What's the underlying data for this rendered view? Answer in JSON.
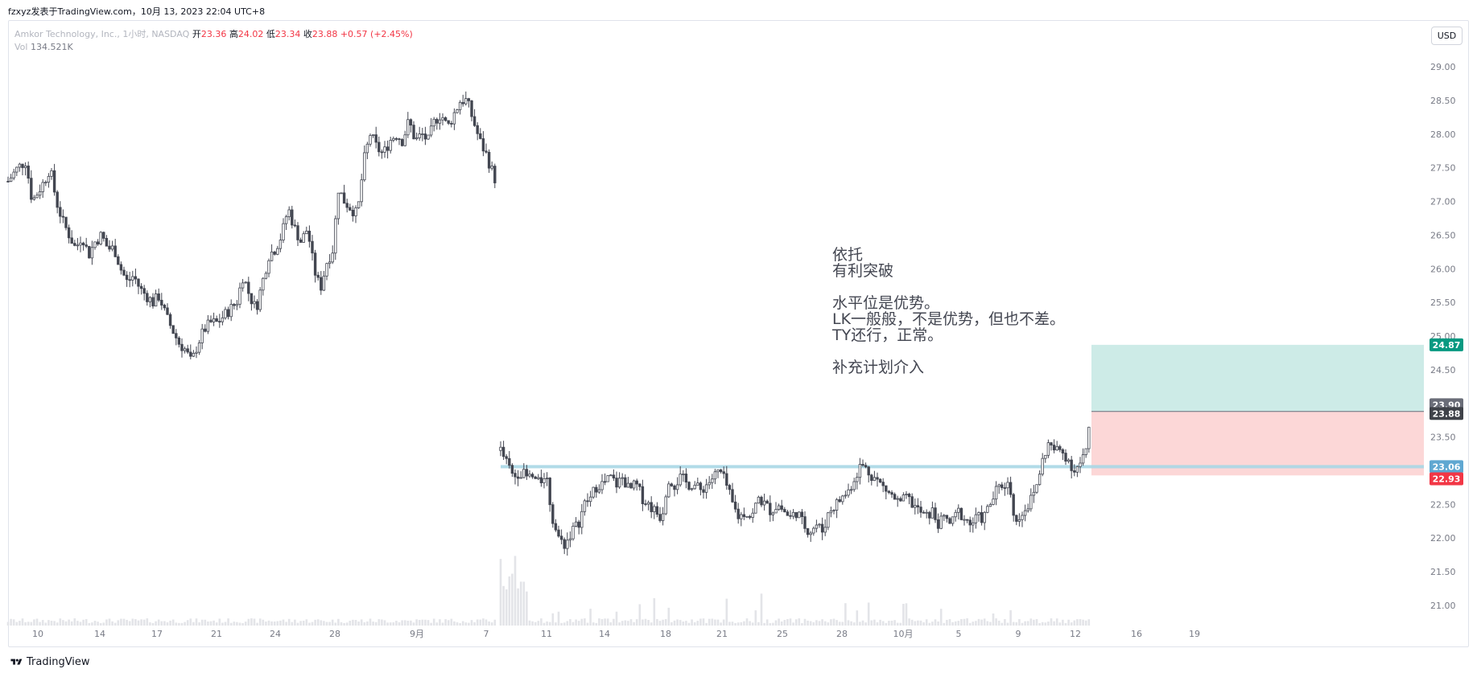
{
  "header": {
    "attribution": "fzxyz发表于TradingView.com，10月 13, 2023 22:04 UTC+8"
  },
  "legend": {
    "symbol": "Amkor Technology, Inc., 1小时, NASDAQ",
    "open_label": "开",
    "open": "23.36",
    "high_label": "高",
    "high": "24.02",
    "low_label": "低",
    "low": "23.34",
    "close_label": "收",
    "close": "23.88",
    "change": "+0.57 (+2.45%)",
    "vol_label": "Vol",
    "vol": "134.521K"
  },
  "currency_button": "USD",
  "note": "依托\n有利突破\n\n水平位是优势。\nLK一般般，不是优势，但也不差。\nTY还行，正常。\n\n补充计划介入",
  "footer": {
    "brand": "TradingView",
    "icon": "tradingview-logo-icon"
  },
  "colors": {
    "candle_up": "#ffffff",
    "candle_down": "#434651",
    "candle_outline": "#434651",
    "volume": "#e3e4e8",
    "horizontal_line": "#a8d7e6",
    "target_zone": "#cdebe7",
    "stop_zone": "#fcd7d7",
    "target_label": "#089981",
    "stop_label": "#f23645",
    "level_label": "#5fa7d1",
    "price_label": "#6a6d78",
    "current_label": "#3f4249"
  },
  "chart_data": {
    "type": "candlestick",
    "interval": "1小时",
    "y_range": [
      20.7,
      29.3
    ],
    "x_range": [
      0,
      1759
    ],
    "y_ticks": [
      "29.00",
      "28.50",
      "28.00",
      "27.50",
      "27.00",
      "26.50",
      "26.00",
      "25.50",
      "25.00",
      "24.50",
      "23.50",
      "23.00",
      "22.50",
      "22.00",
      "21.50",
      "21.00"
    ],
    "y_tick_values": [
      29.0,
      28.5,
      28.0,
      27.5,
      27.0,
      26.5,
      26.0,
      25.5,
      25.0,
      24.5,
      23.5,
      23.0,
      22.5,
      22.0,
      21.5,
      21.0
    ],
    "x_ticks": [
      {
        "x": 37,
        "label": "10"
      },
      {
        "x": 114,
        "label": "14"
      },
      {
        "x": 185,
        "label": "17"
      },
      {
        "x": 259,
        "label": "21"
      },
      {
        "x": 332,
        "label": "24"
      },
      {
        "x": 406,
        "label": "28"
      },
      {
        "x": 508,
        "label": "9月"
      },
      {
        "x": 594,
        "label": "7"
      },
      {
        "x": 669,
        "label": "11"
      },
      {
        "x": 741,
        "label": "14"
      },
      {
        "x": 817,
        "label": "18"
      },
      {
        "x": 887,
        "label": "21"
      },
      {
        "x": 962,
        "label": "25"
      },
      {
        "x": 1036,
        "label": "28"
      },
      {
        "x": 1112,
        "label": "10月"
      },
      {
        "x": 1181,
        "label": "5"
      },
      {
        "x": 1255,
        "label": "9"
      },
      {
        "x": 1326,
        "label": "12"
      },
      {
        "x": 1402,
        "label": "16"
      },
      {
        "x": 1474,
        "label": "19"
      }
    ],
    "price_path_segment_1": [
      [
        0,
        27.3
      ],
      [
        12,
        27.5
      ],
      [
        22,
        27.6
      ],
      [
        30,
        27.0
      ],
      [
        45,
        27.3
      ],
      [
        52,
        27.5
      ],
      [
        60,
        27.0
      ],
      [
        68,
        26.7
      ],
      [
        76,
        26.5
      ],
      [
        84,
        26.3
      ],
      [
        92,
        26.5
      ],
      [
        100,
        26.2
      ],
      [
        108,
        26.4
      ],
      [
        116,
        26.5
      ],
      [
        124,
        26.3
      ],
      [
        132,
        26.3
      ],
      [
        140,
        26.0
      ],
      [
        148,
        25.8
      ],
      [
        156,
        25.9
      ],
      [
        164,
        25.7
      ],
      [
        172,
        25.6
      ],
      [
        180,
        25.5
      ],
      [
        188,
        25.6
      ],
      [
        196,
        25.3
      ],
      [
        204,
        25.1
      ],
      [
        212,
        24.9
      ],
      [
        220,
        24.8
      ],
      [
        228,
        24.6
      ],
      [
        236,
        24.9
      ],
      [
        244,
        25.1
      ],
      [
        252,
        25.2
      ],
      [
        260,
        25.2
      ],
      [
        268,
        25.3
      ],
      [
        276,
        25.4
      ],
      [
        284,
        25.5
      ],
      [
        292,
        25.9
      ],
      [
        300,
        25.6
      ],
      [
        308,
        25.4
      ],
      [
        316,
        25.8
      ],
      [
        324,
        26.2
      ],
      [
        332,
        26.3
      ],
      [
        340,
        26.5
      ],
      [
        348,
        26.9
      ],
      [
        356,
        26.6
      ],
      [
        364,
        26.4
      ],
      [
        372,
        26.6
      ],
      [
        380,
        26.0
      ],
      [
        388,
        25.7
      ],
      [
        396,
        26.1
      ],
      [
        404,
        26.3
      ],
      [
        410,
        27.2
      ],
      [
        418,
        27.0
      ],
      [
        426,
        26.9
      ],
      [
        434,
        26.8
      ],
      [
        442,
        27.6
      ],
      [
        450,
        28.0
      ],
      [
        458,
        27.8
      ],
      [
        466,
        27.7
      ],
      [
        474,
        27.9
      ],
      [
        482,
        28.0
      ],
      [
        490,
        27.9
      ],
      [
        498,
        28.2
      ],
      [
        506,
        27.9
      ],
      [
        514,
        28.0
      ],
      [
        522,
        27.9
      ],
      [
        530,
        28.2
      ],
      [
        538,
        28.3
      ],
      [
        546,
        28.1
      ],
      [
        554,
        28.3
      ],
      [
        562,
        28.5
      ],
      [
        570,
        28.5
      ],
      [
        578,
        28.2
      ],
      [
        586,
        27.9
      ],
      [
        594,
        27.7
      ],
      [
        600,
        27.5
      ],
      [
        606,
        27.3
      ]
    ],
    "price_path_segment_2": [
      [
        612,
        23.3
      ],
      [
        620,
        23.1
      ],
      [
        628,
        22.9
      ],
      [
        636,
        23.0
      ],
      [
        644,
        22.9
      ],
      [
        652,
        22.9
      ],
      [
        660,
        22.8
      ],
      [
        668,
        23.0
      ],
      [
        676,
        22.3
      ],
      [
        684,
        22.0
      ],
      [
        692,
        21.9
      ],
      [
        700,
        22.1
      ],
      [
        708,
        22.2
      ],
      [
        716,
        22.5
      ],
      [
        724,
        22.6
      ],
      [
        732,
        22.8
      ],
      [
        740,
        22.8
      ],
      [
        748,
        22.9
      ],
      [
        756,
        22.8
      ],
      [
        764,
        22.9
      ],
      [
        772,
        22.7
      ],
      [
        780,
        22.8
      ],
      [
        788,
        22.6
      ],
      [
        796,
        22.5
      ],
      [
        804,
        22.4
      ],
      [
        812,
        22.3
      ],
      [
        820,
        22.9
      ],
      [
        828,
        22.8
      ],
      [
        836,
        22.9
      ],
      [
        844,
        22.8
      ],
      [
        852,
        22.8
      ],
      [
        860,
        22.7
      ],
      [
        868,
        22.8
      ],
      [
        876,
        22.9
      ],
      [
        884,
        23.0
      ],
      [
        892,
        22.8
      ],
      [
        900,
        22.5
      ],
      [
        908,
        22.3
      ],
      [
        916,
        22.4
      ],
      [
        924,
        22.3
      ],
      [
        932,
        22.6
      ],
      [
        940,
        22.5
      ],
      [
        948,
        22.4
      ],
      [
        956,
        22.5
      ],
      [
        964,
        22.4
      ],
      [
        972,
        22.3
      ],
      [
        980,
        22.4
      ],
      [
        988,
        22.2
      ],
      [
        996,
        22.1
      ],
      [
        1004,
        22.2
      ],
      [
        1012,
        22.1
      ],
      [
        1020,
        22.4
      ],
      [
        1028,
        22.5
      ],
      [
        1036,
        22.6
      ],
      [
        1044,
        22.7
      ],
      [
        1052,
        22.9
      ],
      [
        1060,
        23.1
      ],
      [
        1068,
        23.0
      ],
      [
        1076,
        22.9
      ],
      [
        1084,
        22.8
      ],
      [
        1092,
        22.7
      ],
      [
        1100,
        22.6
      ],
      [
        1108,
        22.5
      ],
      [
        1116,
        22.6
      ],
      [
        1124,
        22.5
      ],
      [
        1132,
        22.4
      ],
      [
        1140,
        22.3
      ],
      [
        1148,
        22.4
      ],
      [
        1156,
        22.2
      ],
      [
        1164,
        22.3
      ],
      [
        1172,
        22.2
      ],
      [
        1180,
        22.4
      ],
      [
        1188,
        22.3
      ],
      [
        1196,
        22.2
      ],
      [
        1204,
        22.3
      ],
      [
        1212,
        22.3
      ],
      [
        1220,
        22.5
      ],
      [
        1228,
        22.7
      ],
      [
        1236,
        22.8
      ],
      [
        1244,
        22.8
      ],
      [
        1252,
        22.2
      ],
      [
        1260,
        22.4
      ],
      [
        1268,
        22.5
      ],
      [
        1276,
        22.7
      ],
      [
        1284,
        23.1
      ],
      [
        1292,
        23.4
      ],
      [
        1300,
        23.3
      ],
      [
        1308,
        23.3
      ],
      [
        1316,
        23.2
      ],
      [
        1324,
        23.0
      ],
      [
        1332,
        23.1
      ],
      [
        1340,
        23.3
      ],
      [
        1346,
        23.88
      ]
    ],
    "annotations": {
      "horizontal_level": {
        "price": 23.06,
        "x_start": 612,
        "label": "23.06"
      },
      "position": {
        "x_start": 1346,
        "entry": 23.88,
        "entry_label": "23.88",
        "target": 24.87,
        "target_label": "24.87",
        "stop": 22.93,
        "stop_label": "22.93"
      },
      "high_marker": {
        "price": 23.9,
        "label": "23.90"
      }
    }
  }
}
